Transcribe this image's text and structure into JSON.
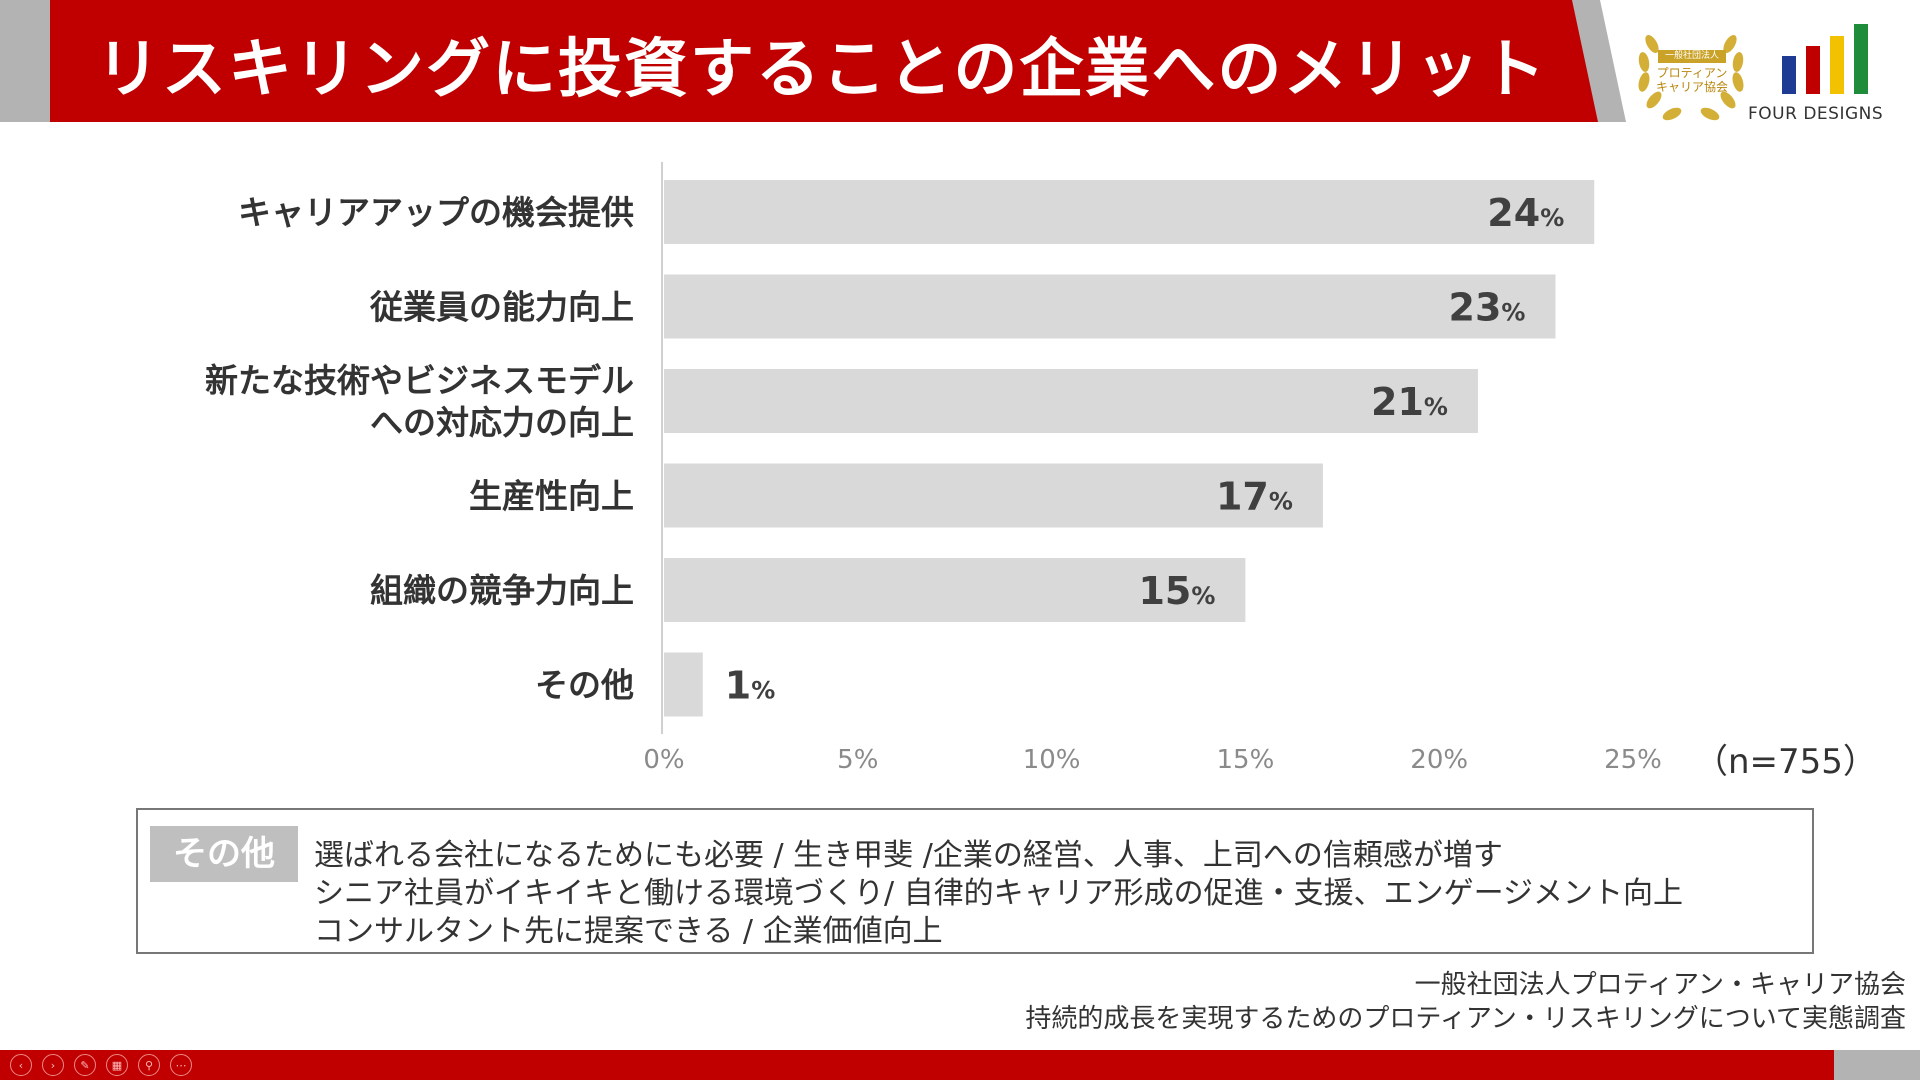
{
  "header": {
    "title": "リスキリングに投資することの企業へのメリット",
    "badge_lines": [
      "一般社団法人",
      "プロティアン",
      "キャリア協会"
    ],
    "logo_text": "FOUR DESIGNS",
    "logo_bar_colors": [
      "#1f3a93",
      "#c00000",
      "#f2c200",
      "#1e8c3a"
    ]
  },
  "chart_data": {
    "type": "bar",
    "orientation": "horizontal",
    "categories": [
      [
        "キャリアアップの機会提供"
      ],
      [
        "従業員の能力向上"
      ],
      [
        "新たな技術やビジネスモデル",
        "への対応力の向上"
      ],
      [
        "生産性向上"
      ],
      [
        "組織の競争力向上"
      ],
      [
        "その他"
      ]
    ],
    "values": [
      24,
      23,
      21,
      17,
      15,
      1
    ],
    "value_suffix": "%",
    "xticks": [
      "0%",
      "5%",
      "10%",
      "15%",
      "20%",
      "25%"
    ],
    "xlim": [
      0,
      25
    ],
    "bar_color": "#d9d9d9",
    "sample_label": "（n=755）"
  },
  "other_box": {
    "tag": "その他",
    "lines": [
      "選ばれる会社になるためにも必要 / 生き甲斐 /企業の経営、人事、上司への信頼感が増す",
      "シニア社員がイキイキと働ける環境づくり/ 自律的キャリア形成の促進・支援、エンゲージメント向上",
      "コンサルタント先に提案できる / 企業価値向上"
    ]
  },
  "source": {
    "org": "一般社団法人プロティアン・キャリア協会",
    "survey": "持続的成長を実現するためのプロティアン・リスキリングについて実態調査"
  },
  "controls": [
    "‹",
    "›",
    "✎",
    "▦",
    "⚲",
    "⋯"
  ]
}
